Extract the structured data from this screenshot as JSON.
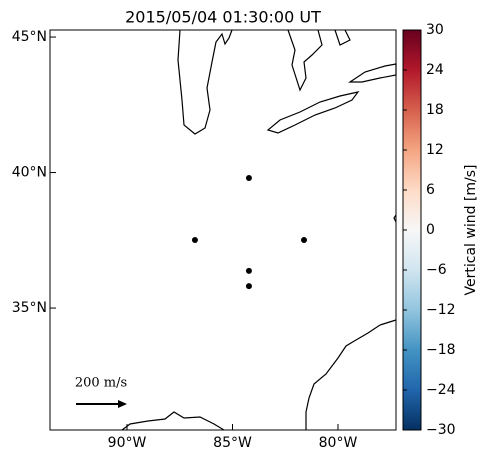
{
  "chart_data": {
    "type": "scatter",
    "title": "2015/05/04 01:30:00 UT",
    "x": [
      -84.22,
      -86.78,
      -81.61,
      -84.22,
      -84.22
    ],
    "y": [
      39.8,
      37.51,
      37.51,
      36.37,
      35.81
    ],
    "color": "#000000",
    "xlim": [
      -93.65,
      -77.25
    ],
    "ylim": [
      30.5,
      45.26
    ],
    "xticks": [
      {
        "value": -90,
        "label": "90°W"
      },
      {
        "value": -85,
        "label": "85°W"
      },
      {
        "value": -80,
        "label": "80°W"
      }
    ],
    "yticks": [
      {
        "value": 45,
        "label": "45°N"
      },
      {
        "value": 40,
        "label": "40°N"
      },
      {
        "value": 35,
        "label": "35°N"
      }
    ],
    "scale_label": "200 m/s",
    "colorbar": {
      "label": "Vertical wind [m/s]",
      "lim": [
        -30,
        30
      ],
      "ticks": [
        {
          "value": -30,
          "label": "−30"
        },
        {
          "value": -24,
          "label": "−24"
        },
        {
          "value": -18,
          "label": "−18"
        },
        {
          "value": -12,
          "label": "−12"
        },
        {
          "value": -6,
          "label": "−6"
        },
        0,
        6,
        12,
        18,
        24,
        30
      ],
      "colormap": [
        "#053061",
        "#2166ac",
        "#4393c3",
        "#92c5de",
        "#d1e5f0",
        "#f7f7f7",
        "#fddbc7",
        "#f4a582",
        "#d6604d",
        "#b2182b",
        "#67001f"
      ]
    }
  }
}
